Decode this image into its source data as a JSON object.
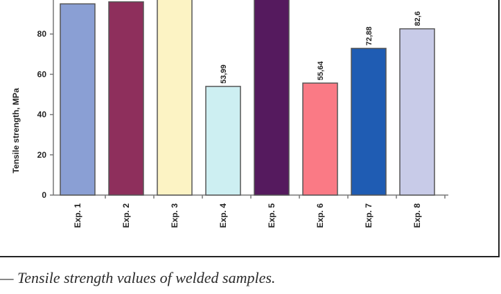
{
  "chart_data": {
    "type": "bar",
    "categories": [
      "Exp. 1",
      "Exp. 2",
      "Exp. 3",
      "Exp. 4",
      "Exp. 5",
      "Exp. 6",
      "Exp. 7",
      "Exp. 8"
    ],
    "values": [
      95,
      96,
      100,
      53.99,
      100,
      55.64,
      72.88,
      82.6
    ],
    "value_labels": [
      "",
      "",
      "",
      "53,99",
      "",
      "55,64",
      "72,88",
      "82,6"
    ],
    "colors": [
      "#8a9fd4",
      "#8e2f5c",
      "#fcf3c4",
      "#cdeff2",
      "#551a5e",
      "#fa7a85",
      "#1f5cb3",
      "#c8cbe8"
    ],
    "ylabel": "Tensile strength, MPa",
    "yticks": [
      0,
      20,
      40,
      60,
      80
    ],
    "ylim": [
      0,
      100
    ],
    "grid": false
  },
  "caption": "— Tensile strength values of welded samples."
}
